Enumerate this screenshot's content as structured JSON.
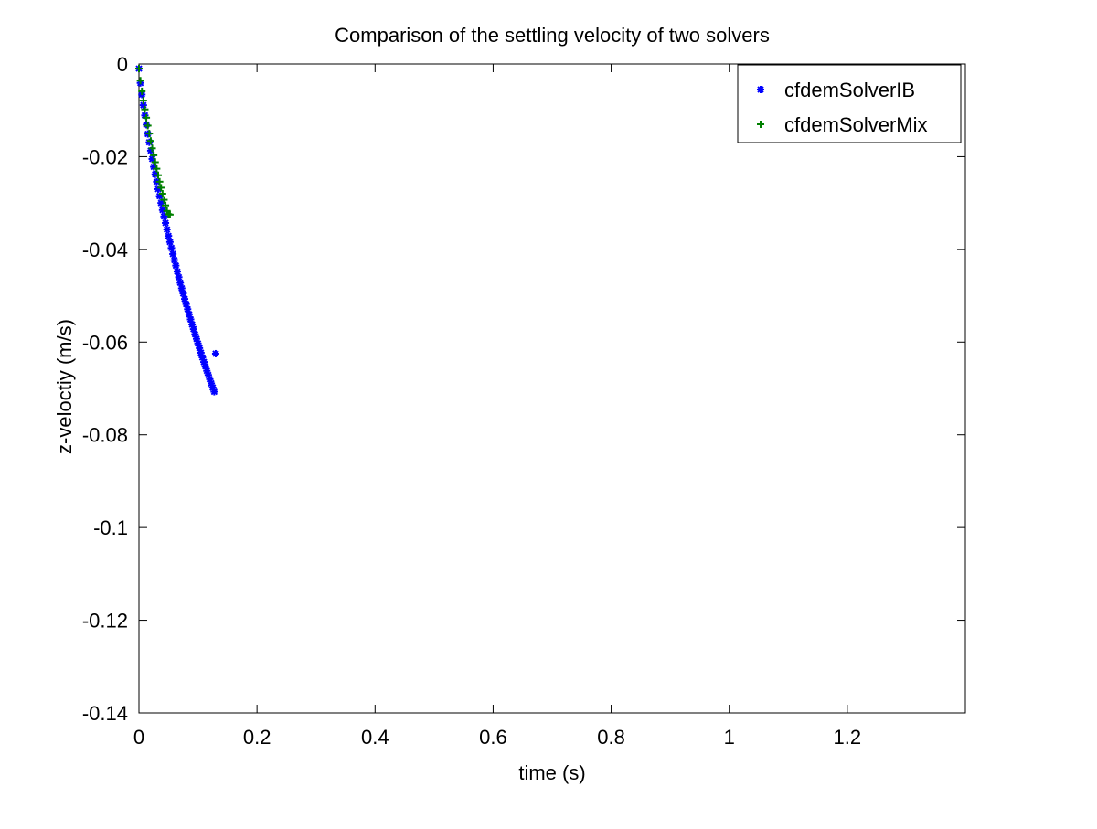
{
  "chart_data": {
    "type": "scatter",
    "title": "Comparison of the settling velocity of two solvers",
    "xlabel": "time (s)",
    "ylabel": "z-veloctiy (m/s)",
    "xlim": [
      0,
      1.4
    ],
    "ylim": [
      -0.14,
      0
    ],
    "x_ticks": [
      0,
      0.2,
      0.4,
      0.6,
      0.8,
      1,
      1.2
    ],
    "x_tick_labels": [
      "0",
      "0.2",
      "0.4",
      "0.6",
      "0.8",
      "1",
      "1.2"
    ],
    "y_ticks": [
      0,
      -0.02,
      -0.04,
      -0.06,
      -0.08,
      -0.1,
      -0.12,
      -0.14
    ],
    "y_tick_labels": [
      "0",
      "-0.02",
      "-0.04",
      "-0.06",
      "-0.08",
      "-0.1",
      "-0.12",
      "-0.14"
    ],
    "grid": false,
    "legend_position": "top-right",
    "series": [
      {
        "name": "cfdemSolverIB",
        "marker": "asterisk",
        "color": "#0000ff",
        "x": [
          0.0,
          0.0025,
          0.005,
          0.0075,
          0.01,
          0.0125,
          0.015,
          0.0175,
          0.02,
          0.0225,
          0.025,
          0.0275,
          0.03,
          0.0325,
          0.035,
          0.0375,
          0.04,
          0.0425,
          0.045,
          0.0475,
          0.05,
          0.0525,
          0.055,
          0.0575,
          0.06,
          0.0625,
          0.065,
          0.0675,
          0.07,
          0.0725,
          0.075,
          0.0775,
          0.08,
          0.0825,
          0.085,
          0.0875,
          0.09,
          0.0925,
          0.095,
          0.0975,
          0.1,
          0.1025,
          0.105,
          0.1075,
          0.11,
          0.1125,
          0.115,
          0.1175,
          0.12,
          0.1225,
          0.125,
          0.1275,
          0.13
        ],
        "y": [
          -0.001,
          -0.0041,
          -0.0066,
          -0.0089,
          -0.0111,
          -0.0131,
          -0.0151,
          -0.0169,
          -0.0187,
          -0.0205,
          -0.0222,
          -0.0238,
          -0.0254,
          -0.027,
          -0.0285,
          -0.03,
          -0.0315,
          -0.0329,
          -0.0343,
          -0.0357,
          -0.0371,
          -0.0384,
          -0.0397,
          -0.041,
          -0.0423,
          -0.0435,
          -0.0448,
          -0.046,
          -0.0472,
          -0.0484,
          -0.0495,
          -0.0507,
          -0.0518,
          -0.0529,
          -0.054,
          -0.0551,
          -0.0562,
          -0.0572,
          -0.0583,
          -0.0593,
          -0.0603,
          -0.0613,
          -0.0623,
          -0.0633,
          -0.0643,
          -0.0652,
          -0.0662,
          -0.0671,
          -0.068,
          -0.0689,
          -0.0698,
          -0.0707,
          -0.0625
        ]
      },
      {
        "name": "cfdemSolverMix",
        "marker": "plus",
        "color": "#008000",
        "x": [
          0.0,
          0.0025,
          0.005,
          0.0075,
          0.01,
          0.0125,
          0.015,
          0.0175,
          0.02,
          0.0225,
          0.025,
          0.0275,
          0.03,
          0.0325,
          0.035,
          0.0375,
          0.04,
          0.0425,
          0.045,
          0.0475,
          0.05,
          0.0525
        ],
        "y": [
          -0.001,
          -0.0036,
          -0.0059,
          -0.0079,
          -0.0098,
          -0.0116,
          -0.0133,
          -0.015,
          -0.0166,
          -0.0182,
          -0.0197,
          -0.0212,
          -0.0226,
          -0.024,
          -0.0254,
          -0.0267,
          -0.028,
          -0.0293,
          -0.0305,
          -0.0317,
          -0.0324,
          -0.0325
        ]
      }
    ]
  }
}
